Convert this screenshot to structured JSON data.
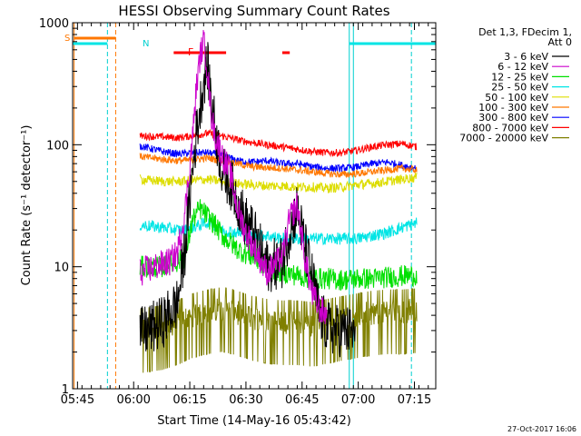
{
  "chart_data": {
    "type": "line",
    "title": "HESSI Observing Summary Count Rates",
    "xlabel": "Start Time (14-May-16 05:43:42)",
    "ylabel": "Count Rate (s⁻¹ detector⁻¹)",
    "y_scale": "log",
    "ylim": [
      1,
      1000
    ],
    "xlim_minutes": [
      0,
      97
    ],
    "x_tick_labels": [
      "05:45",
      "06:00",
      "06:15",
      "06:30",
      "06:45",
      "07:00",
      "07:15"
    ],
    "x_tick_minutes": [
      1.3,
      16.3,
      31.3,
      46.3,
      61.3,
      76.3,
      91.3
    ],
    "y_tick_labels": [
      "1",
      "10",
      "100",
      "1000"
    ],
    "y_tick_values": [
      1,
      10,
      100,
      1000
    ],
    "legend": {
      "placement": "right",
      "header": [
        "Det 1,3, FDecim 1,",
        "Att 0"
      ],
      "entries": [
        {
          "label": "3 - 6 keV",
          "color": "#000000"
        },
        {
          "label": "6 - 12 keV",
          "color": "#cc00cc"
        },
        {
          "label": "12 - 25 keV",
          "color": "#00e000"
        },
        {
          "label": "25 - 50 keV",
          "color": "#00e5e5"
        },
        {
          "label": "50 - 100 keV",
          "color": "#dddd00"
        },
        {
          "label": "100 - 300 keV",
          "color": "#ff7700"
        },
        {
          "label": "300 - 800 keV",
          "color": "#0000ff"
        },
        {
          "label": "800 - 7000 keV",
          "color": "#ff0000"
        },
        {
          "label": "7000 - 20000 keV",
          "color": "#808000"
        }
      ]
    },
    "series": [
      {
        "name": "3 - 6 keV",
        "color": "#000000",
        "x": [
          18,
          20,
          24,
          28,
          30,
          32,
          33,
          35,
          36,
          38,
          40,
          42,
          44,
          46,
          48,
          52,
          56,
          58,
          60,
          62,
          64,
          66,
          68,
          70,
          73,
          75.5
        ],
        "y": [
          2.8,
          3.0,
          3.5,
          5.0,
          14,
          60,
          120,
          330,
          450,
          140,
          60,
          50,
          35,
          24,
          20,
          10,
          11,
          20,
          30,
          15,
          8,
          4,
          3.2,
          3.0,
          3.0,
          2.8
        ]
      },
      {
        "name": "6 - 12 keV",
        "color": "#cc00cc",
        "x": [
          18,
          22,
          26,
          28,
          30,
          32,
          33,
          34,
          35,
          36,
          37,
          38,
          40,
          42,
          44,
          46,
          48,
          52,
          56,
          58,
          60,
          62,
          64,
          66,
          68
        ],
        "y": [
          9.0,
          10,
          11,
          13,
          28,
          110,
          280,
          520,
          700,
          420,
          180,
          120,
          80,
          60,
          30,
          20,
          15,
          9,
          12,
          25,
          32,
          12,
          6,
          4.5,
          4.0
        ]
      },
      {
        "name": "12 - 25 keV",
        "color": "#00e000",
        "x": [
          18,
          24,
          28,
          30,
          32,
          34,
          36,
          38,
          40,
          44,
          48,
          52,
          56,
          60,
          64,
          68,
          72,
          76,
          80,
          84,
          88,
          92
        ],
        "y": [
          10,
          10,
          11,
          12,
          24,
          30,
          26,
          22,
          18,
          14,
          12,
          10,
          9,
          8.5,
          8,
          8,
          7.8,
          8,
          8,
          8.2,
          8.4,
          8.5
        ]
      },
      {
        "name": "25 - 50 keV",
        "color": "#00e5e5",
        "x": [
          18,
          24,
          28,
          30,
          32,
          34,
          36,
          38,
          40,
          44,
          48,
          52,
          56,
          60,
          64,
          68,
          72,
          76,
          80,
          84,
          88,
          92
        ],
        "y": [
          22,
          21,
          20,
          20,
          21,
          22,
          23,
          22,
          20,
          19,
          18,
          18,
          17,
          17,
          17,
          17,
          17,
          17,
          18,
          19,
          21,
          23
        ]
      },
      {
        "name": "50 - 100 keV",
        "color": "#dddd00",
        "x": [
          18,
          24,
          28,
          32,
          36,
          40,
          44,
          48,
          52,
          56,
          60,
          64,
          68,
          72,
          76,
          80,
          84,
          88,
          92
        ],
        "y": [
          52,
          50,
          50,
          51,
          52,
          50,
          48,
          47,
          46,
          46,
          45,
          45,
          44,
          45,
          47,
          48,
          50,
          52,
          54
        ]
      },
      {
        "name": "100 - 300 keV",
        "color": "#ff7700",
        "x": [
          18,
          24,
          28,
          32,
          36,
          40,
          44,
          48,
          52,
          56,
          60,
          64,
          68,
          72,
          76,
          80,
          84,
          88,
          92
        ],
        "y": [
          80,
          76,
          74,
          75,
          78,
          74,
          70,
          66,
          65,
          64,
          62,
          60,
          58,
          57,
          58,
          60,
          62,
          64,
          62
        ]
      },
      {
        "name": "300 - 800 keV",
        "color": "#0000ff",
        "x": [
          18,
          24,
          28,
          32,
          36,
          40,
          44,
          48,
          52,
          56,
          60,
          64,
          68,
          72,
          76,
          80,
          84,
          88,
          92
        ],
        "y": [
          98,
          88,
          84,
          86,
          86,
          82,
          74,
          72,
          74,
          70,
          70,
          66,
          64,
          64,
          66,
          70,
          72,
          68,
          64
        ]
      },
      {
        "name": "800 - 7000 keV",
        "color": "#ff0000",
        "x": [
          18,
          24,
          28,
          32,
          36,
          40,
          44,
          48,
          52,
          56,
          60,
          64,
          68,
          72,
          76,
          80,
          84,
          88,
          92
        ],
        "y": [
          118,
          116,
          114,
          118,
          124,
          118,
          110,
          104,
          100,
          96,
          92,
          88,
          86,
          86,
          90,
          96,
          100,
          102,
          96
        ]
      },
      {
        "name": "7000 - 20000 keV",
        "color": "#808000",
        "x": [
          18,
          24,
          28,
          32,
          36,
          40,
          44,
          48,
          52,
          56,
          60,
          64,
          68,
          72,
          76,
          80,
          84,
          88,
          92
        ],
        "y": [
          3.0,
          3.2,
          3.5,
          4.0,
          4.3,
          4.5,
          4.2,
          3.8,
          3.6,
          3.5,
          3.5,
          3.4,
          3.6,
          3.8,
          4.0,
          4.2,
          4.3,
          4.3,
          4.4
        ]
      }
    ],
    "annotations": {
      "saa_label": "S",
      "night_label": "N",
      "flare_label": "F",
      "saa_intervals": [
        [
          0.4,
          11.5
        ]
      ],
      "night_intervals": [
        [
          -2,
          9.3
        ],
        [
          73.9,
          97
        ]
      ],
      "flare_intervals": [
        [
          27,
          41
        ],
        [
          56,
          58
        ]
      ],
      "saa_boundaries": [
        0.4,
        11.5
      ],
      "night_boundaries": [
        9.3,
        73.9
      ]
    },
    "grid": false
  },
  "footer": {
    "timestamp": "27-Oct-2017 16:06"
  }
}
